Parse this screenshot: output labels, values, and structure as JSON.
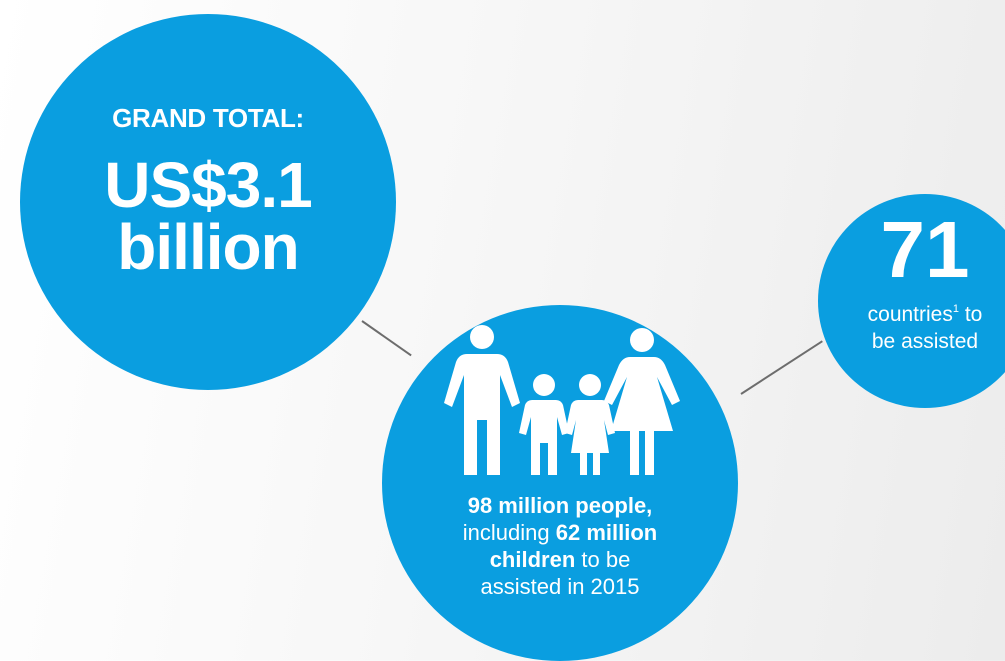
{
  "grand_total": {
    "label": "GRAND TOTAL:",
    "amount_line1": "US$3.1",
    "amount_line2": "billion"
  },
  "countries": {
    "count": "71",
    "line1_text": "countries",
    "footnote": "1",
    "line1_suffix": " to",
    "line2": "be assisted"
  },
  "people": {
    "icon": "family-icon",
    "people_count": "98 million people,",
    "including_text": "including ",
    "children_count": "62 million",
    "children_label": "children",
    "to_be_text": " to be",
    "assisted_text": "assisted in 2015"
  },
  "colors": {
    "bubble": "#0a9ee0",
    "connector": "#6d6d6d",
    "text": "#ffffff"
  }
}
